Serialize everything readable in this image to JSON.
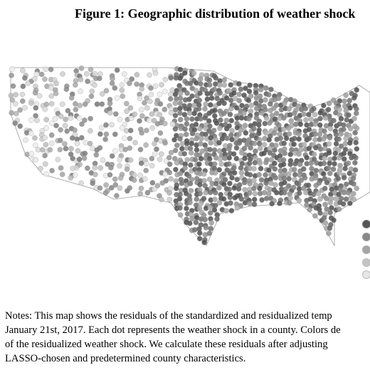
{
  "figure": {
    "title": "Figure 1: Geographic distribution of weather shock",
    "notes": [
      "Notes: This map shows the residuals of the standardized and residualized temp",
      "January 21st, 2017. Each dot represents the weather shock in a county. Colors de",
      "of the residualized weather shock.  We calculate these residuals after adjusting",
      "LASSO-chosen and predetermined county characteristics."
    ]
  }
}
